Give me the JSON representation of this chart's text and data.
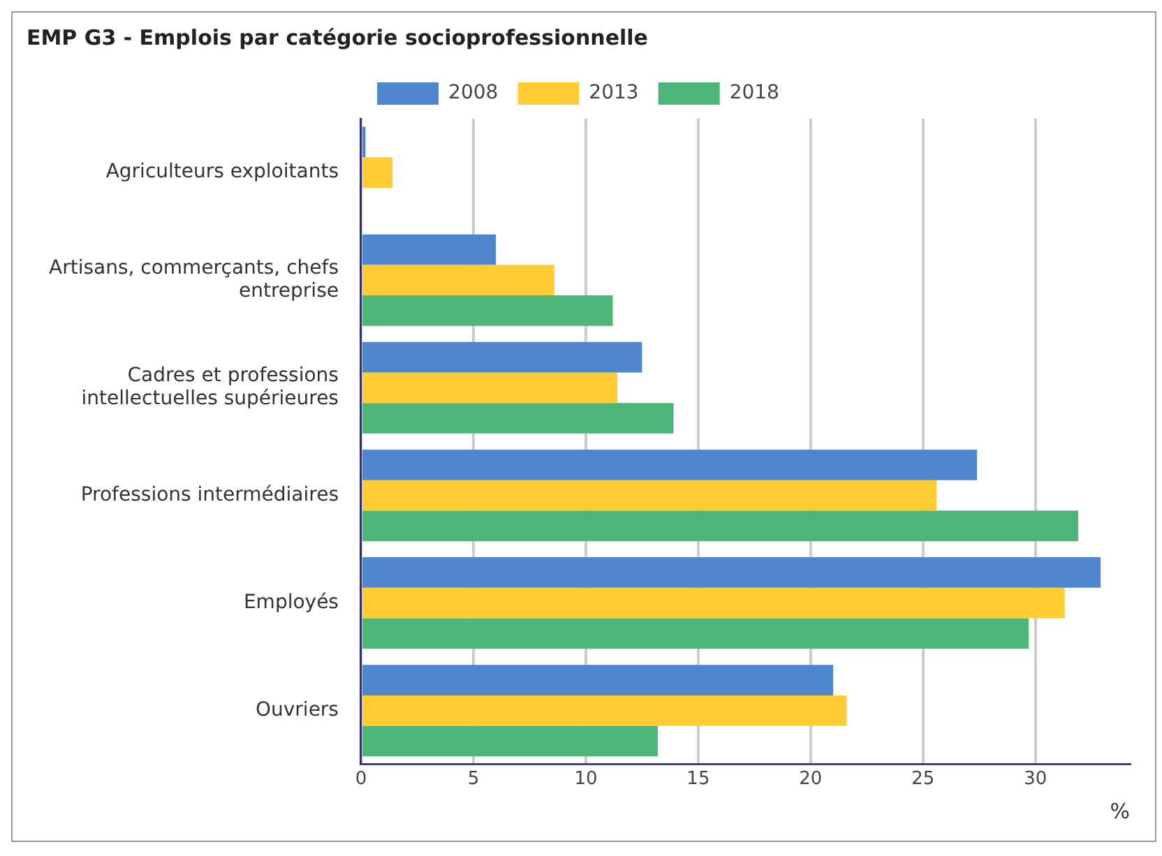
{
  "chart_data": {
    "type": "bar",
    "orientation": "horizontal",
    "title": "EMP G3 - Emplois par catégorie socioprofessionnelle",
    "xlabel": "%",
    "categories": [
      "Agriculteurs exploitants",
      "Artisans, commerçants, chefs entreprise",
      "Cadres et professions intellectuelles supérieures",
      "Professions intermédiaires",
      "Employés",
      "Ouvriers"
    ],
    "series": [
      {
        "name": "2008",
        "color": "#4f86d0",
        "values": [
          0.2,
          6.0,
          12.5,
          27.4,
          32.9,
          21.0
        ]
      },
      {
        "name": "2013",
        "color": "#ffcd33",
        "values": [
          1.4,
          8.6,
          11.4,
          25.6,
          31.3,
          21.6
        ]
      },
      {
        "name": "2018",
        "color": "#4bb677",
        "values": [
          0,
          11.2,
          13.9,
          31.9,
          29.7,
          13.2
        ]
      }
    ],
    "xlim": [
      0,
      34.2
    ],
    "xticks": [
      0,
      5,
      10,
      15,
      20,
      25,
      30
    ],
    "grid": "x",
    "legend": "top"
  }
}
